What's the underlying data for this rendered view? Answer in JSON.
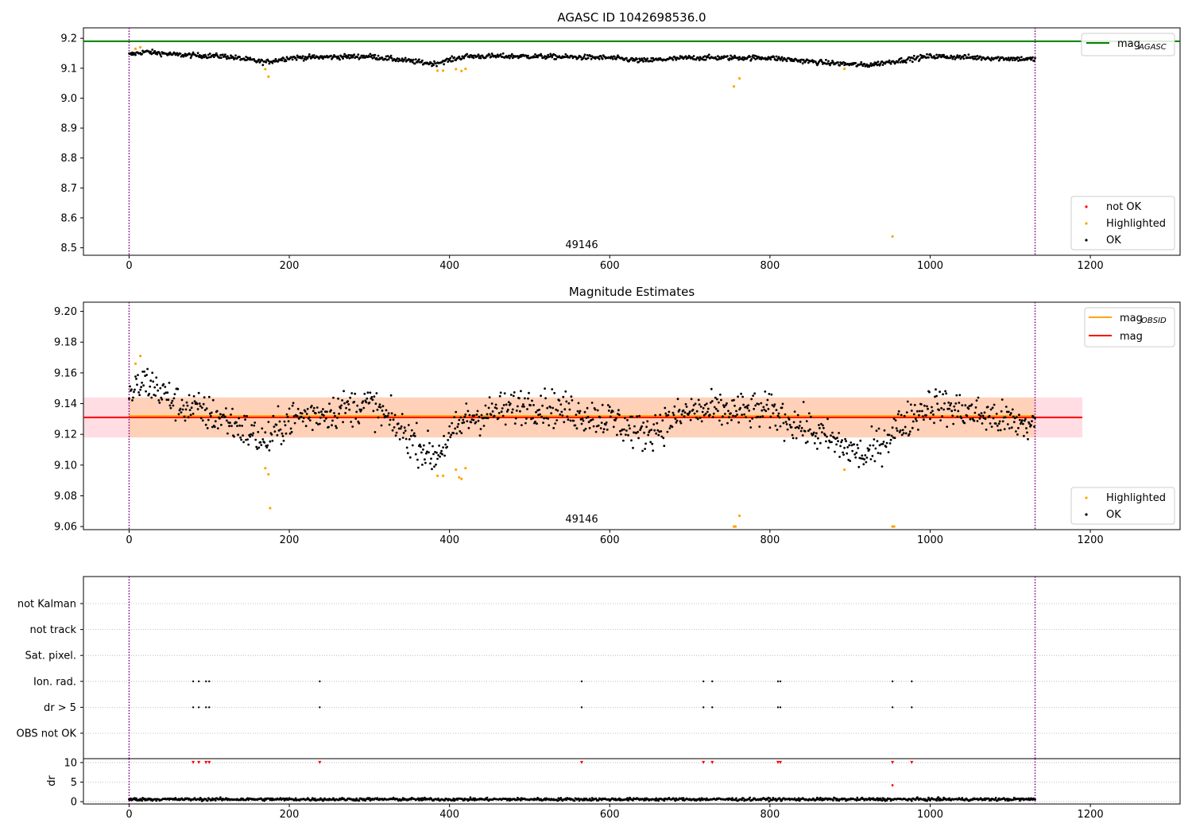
{
  "colors": {
    "ok": "#000000",
    "highlighted": "#ffa500",
    "not_ok": "#ff0000",
    "agasc_line": "#008000",
    "obsid_line": "#ffa500",
    "mean_line": "#ff0000",
    "band_outer": "#ffdde3",
    "band_inner": "#ffd1b9",
    "obs_boundary": "#800080",
    "grid": "#b0b0b0"
  },
  "chart_data": [
    {
      "type": "scatter",
      "title": "AGASC ID 1042698536.0",
      "xlim": [
        -57,
        1312
      ],
      "ylim": [
        8.475,
        9.235
      ],
      "yticks": [
        8.5,
        8.6,
        8.7,
        8.8,
        8.9,
        9.0,
        9.1,
        9.2
      ],
      "ytick_labels": [
        "8.5",
        "8.6",
        "8.7",
        "8.8",
        "8.9",
        "9.0",
        "9.1",
        "9.2"
      ],
      "xticks": [
        0,
        200,
        400,
        600,
        800,
        1000,
        1200
      ],
      "xtick_labels": [
        "0",
        "200",
        "400",
        "600",
        "800",
        "1000",
        "1200"
      ],
      "obs_boundaries": [
        0,
        1131
      ],
      "obsid_label": "49146",
      "mag_agasc": 9.19,
      "ok_profile": [
        [
          0,
          9.145
        ],
        [
          20,
          9.155
        ],
        [
          60,
          9.145
        ],
        [
          120,
          9.14
        ],
        [
          170,
          9.12
        ],
        [
          200,
          9.135
        ],
        [
          300,
          9.14
        ],
        [
          380,
          9.115
        ],
        [
          420,
          9.14
        ],
        [
          500,
          9.14
        ],
        [
          600,
          9.135
        ],
        [
          640,
          9.125
        ],
        [
          700,
          9.135
        ],
        [
          800,
          9.135
        ],
        [
          860,
          9.12
        ],
        [
          920,
          9.11
        ],
        [
          960,
          9.125
        ],
        [
          1000,
          9.14
        ],
        [
          1131,
          9.13
        ]
      ],
      "ok_noise": 0.018,
      "highlighted": {
        "x": [
          8,
          14,
          170,
          174,
          385,
          392,
          408,
          415,
          420,
          755,
          762,
          893,
          953
        ],
        "y": [
          9.165,
          9.17,
          9.097,
          9.072,
          9.092,
          9.092,
          9.097,
          9.091,
          9.098,
          9.039,
          9.066,
          9.098,
          8.538
        ]
      },
      "legend_lines": [
        {
          "label": "mag",
          "sub": "AGASC",
          "color": "#008000"
        }
      ],
      "legend_points": [
        {
          "label": "not OK",
          "color": "#ff0000"
        },
        {
          "label": "Highlighted",
          "color": "#ffa500"
        },
        {
          "label": "OK",
          "color": "#000000"
        }
      ]
    },
    {
      "type": "scatter",
      "title": "Magnitude Estimates",
      "xlim": [
        -57,
        1312
      ],
      "ylim": [
        9.058,
        9.206
      ],
      "yticks": [
        9.06,
        9.08,
        9.1,
        9.12,
        9.14,
        9.16,
        9.18,
        9.2
      ],
      "ytick_labels": [
        "9.06",
        "9.08",
        "9.10",
        "9.12",
        "9.14",
        "9.16",
        "9.18",
        "9.20"
      ],
      "xticks": [
        0,
        200,
        400,
        600,
        800,
        1000,
        1200
      ],
      "xtick_labels": [
        "0",
        "200",
        "400",
        "600",
        "800",
        "1000",
        "1200"
      ],
      "obs_boundaries": [
        0,
        1131
      ],
      "obsid_label": "49146",
      "mag_obsid": 9.132,
      "mag": 9.131,
      "band": {
        "x": [
          -57,
          1190
        ],
        "y": [
          9.118,
          9.144
        ]
      },
      "ok_profile": [
        [
          0,
          9.145
        ],
        [
          20,
          9.155
        ],
        [
          60,
          9.14
        ],
        [
          120,
          9.13
        ],
        [
          170,
          9.115
        ],
        [
          200,
          9.13
        ],
        [
          300,
          9.14
        ],
        [
          380,
          9.105
        ],
        [
          420,
          9.13
        ],
        [
          500,
          9.14
        ],
        [
          600,
          9.13
        ],
        [
          640,
          9.12
        ],
        [
          700,
          9.135
        ],
        [
          800,
          9.135
        ],
        [
          860,
          9.12
        ],
        [
          920,
          9.105
        ],
        [
          960,
          9.125
        ],
        [
          1000,
          9.14
        ],
        [
          1131,
          9.125
        ]
      ],
      "ok_noise": 0.026,
      "highlighted": {
        "x": [
          8,
          14,
          170,
          174,
          176,
          385,
          392,
          408,
          412,
          415,
          420,
          755,
          757,
          762,
          893,
          953,
          955
        ],
        "y": [
          9.166,
          9.171,
          9.098,
          9.094,
          9.072,
          9.093,
          9.093,
          9.097,
          9.092,
          9.091,
          9.098,
          9.06,
          9.06,
          9.067,
          9.097,
          9.06,
          9.06
        ]
      },
      "legend_lines": [
        {
          "label": "mag",
          "sub": "OBSID",
          "color": "#ffa500"
        },
        {
          "label": "mag",
          "sub": "",
          "color": "#ff0000"
        }
      ],
      "legend_points": [
        {
          "label": "Highlighted",
          "color": "#ffa500"
        },
        {
          "label": "OK",
          "color": "#000000"
        }
      ]
    },
    {
      "type": "scatter",
      "title": "",
      "xlim": [
        -57,
        1312
      ],
      "categories": [
        "not Kalman",
        "not track",
        "Sat. pixel.",
        "Ion. rad.",
        "dr > 5",
        "OBS not OK"
      ],
      "flag_x": {
        "not Kalman": [],
        "not track": [],
        "Sat. pixel.": [],
        "Ion. rad.": [
          80,
          87,
          96,
          100,
          238,
          565,
          717,
          728,
          810,
          813,
          953,
          977
        ],
        "dr > 5": [
          80,
          87,
          96,
          100,
          238,
          565,
          717,
          728,
          810,
          813,
          953,
          977
        ],
        "OBS not OK": []
      },
      "obs_boundaries": [
        0,
        1131
      ]
    },
    {
      "type": "scatter",
      "title": "",
      "xlim": [
        -57,
        1312
      ],
      "ylim": [
        -0.6,
        11
      ],
      "yticks": [
        0,
        5,
        10
      ],
      "ytick_labels": [
        "0",
        "5",
        "10"
      ],
      "xticks": [
        0,
        200,
        400,
        600,
        800,
        1000,
        1200
      ],
      "xtick_labels": [
        "0",
        "200",
        "400",
        "600",
        "800",
        "1000",
        "1200"
      ],
      "ylabel": "dr",
      "obs_boundaries": [
        0,
        1131
      ],
      "dr_typical": 0.6,
      "dr_capped_x": [
        80,
        87,
        96,
        100,
        238,
        565,
        717,
        728,
        810,
        813,
        953,
        977
      ],
      "dr_capped_y": 10,
      "dr_outlier": {
        "x": [
          953
        ],
        "y": [
          4.2
        ]
      }
    }
  ]
}
